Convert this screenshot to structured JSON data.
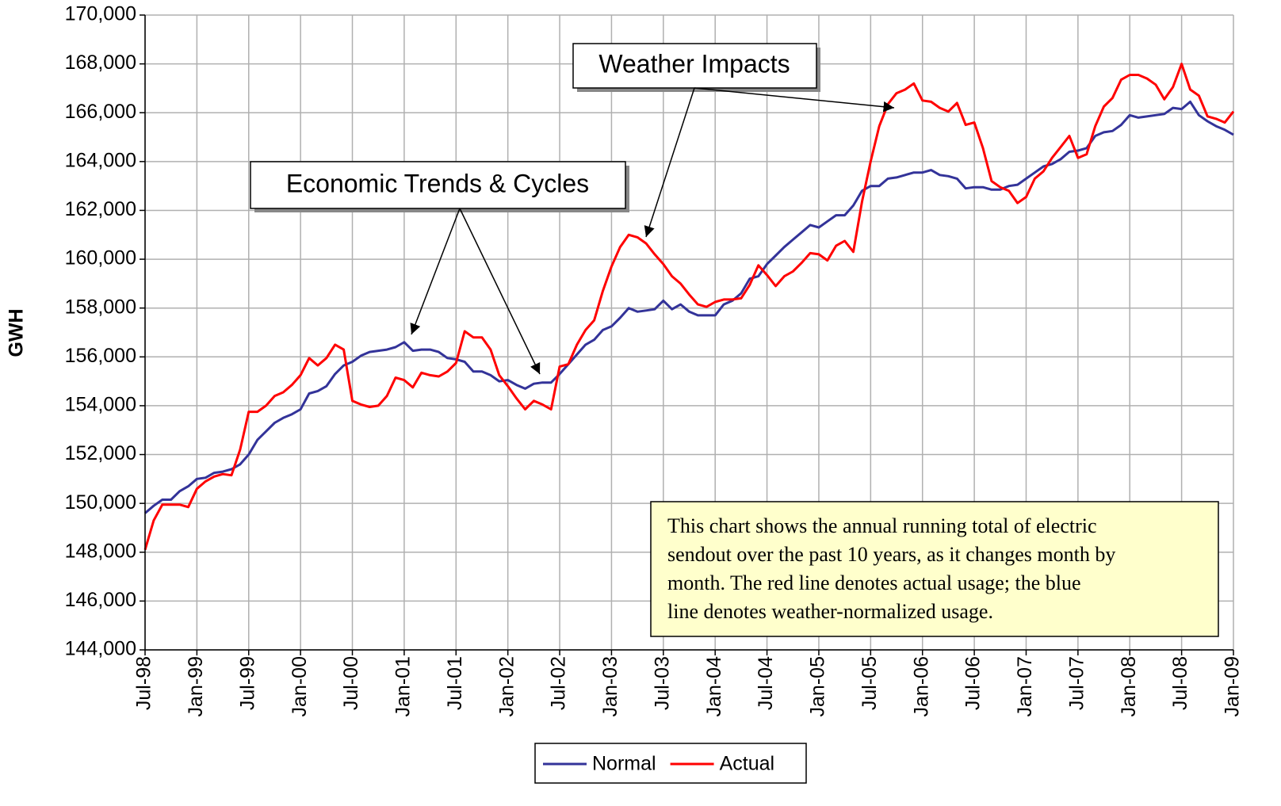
{
  "chart_data": {
    "type": "line",
    "y_label": "GWH",
    "categories": [
      "Jul-98",
      null,
      null,
      null,
      null,
      null,
      "Jan-99",
      null,
      null,
      null,
      null,
      null,
      "Jul-99",
      null,
      null,
      null,
      null,
      null,
      "Jan-00",
      null,
      null,
      null,
      null,
      null,
      "Jul-00",
      null,
      null,
      null,
      null,
      null,
      "Jan-01",
      null,
      null,
      null,
      null,
      null,
      "Jul-01",
      null,
      null,
      null,
      null,
      null,
      "Jan-02",
      null,
      null,
      null,
      null,
      null,
      "Jul-02",
      null,
      null,
      null,
      null,
      null,
      "Jan-03",
      null,
      null,
      null,
      null,
      null,
      "Jul-03",
      null,
      null,
      null,
      null,
      null,
      "Jan-04",
      null,
      null,
      null,
      null,
      null,
      "Jul-04",
      null,
      null,
      null,
      null,
      null,
      "Jan-05",
      null,
      null,
      null,
      null,
      null,
      "Jul-05",
      null,
      null,
      null,
      null,
      null,
      "Jan-06",
      null,
      null,
      null,
      null,
      null,
      "Jul-06",
      null,
      null,
      null,
      null,
      null,
      "Jan-07",
      null,
      null,
      null,
      null,
      null,
      "Jul-07",
      null,
      null,
      null,
      null,
      null,
      "Jan-08",
      null,
      null,
      null,
      null,
      null,
      "Jul-08",
      null,
      null,
      null,
      null,
      null,
      "Jan-09"
    ],
    "series": [
      {
        "name": "Normal",
        "color": "#333399",
        "values": [
          149600,
          149900,
          150150,
          150150,
          150500,
          150700,
          151000,
          151050,
          151250,
          151300,
          151400,
          151600,
          152000,
          152600,
          152950,
          153300,
          153500,
          153650,
          153850,
          154500,
          154600,
          154800,
          155300,
          155650,
          155800,
          156050,
          156200,
          156250,
          156300,
          156400,
          156600,
          156250,
          156300,
          156300,
          156200,
          155950,
          155900,
          155800,
          155400,
          155400,
          155250,
          155000,
          155050,
          154850,
          154700,
          154900,
          154950,
          154950,
          155300,
          155700,
          156100,
          156500,
          156700,
          157100,
          157250,
          157600,
          158000,
          157850,
          157900,
          157950,
          158300,
          157950,
          158150,
          157850,
          157700,
          157700,
          157700,
          158150,
          158300,
          158600,
          159200,
          159300,
          159800,
          160150,
          160500,
          160800,
          161100,
          161400,
          161300,
          161550,
          161800,
          161800,
          162200,
          162800,
          163000,
          163000,
          163300,
          163350,
          163450,
          163550,
          163550,
          163650,
          163450,
          163400,
          163300,
          162900,
          162950,
          162950,
          162850,
          162850,
          163000,
          163050,
          163300,
          163550,
          163800,
          163900,
          164100,
          164400,
          164450,
          164550,
          165050,
          165200,
          165250,
          165500,
          165900,
          165800,
          165850,
          165900,
          165950,
          166200,
          166150,
          166450,
          165900,
          165650,
          165450,
          165300,
          165100
        ]
      },
      {
        "name": "Actual",
        "color": "#ff0000",
        "values": [
          148100,
          149300,
          149950,
          149950,
          149950,
          149850,
          150600,
          150900,
          151100,
          151200,
          151150,
          152200,
          153750,
          153750,
          154000,
          154400,
          154550,
          154850,
          155250,
          155950,
          155650,
          155950,
          156500,
          156300,
          154200,
          154050,
          153950,
          154000,
          154400,
          155150,
          155050,
          154750,
          155350,
          155250,
          155200,
          155400,
          155750,
          157050,
          156800,
          156800,
          156300,
          155250,
          154800,
          154300,
          153850,
          154200,
          154050,
          153850,
          155600,
          155700,
          156500,
          157100,
          157500,
          158700,
          159700,
          160500,
          161000,
          160900,
          160650,
          160200,
          159800,
          159300,
          159000,
          158550,
          158150,
          158050,
          158250,
          158350,
          158350,
          158400,
          158950,
          159750,
          159350,
          158900,
          159300,
          159500,
          159850,
          160250,
          160200,
          159950,
          160550,
          160750,
          160300,
          162350,
          164000,
          165450,
          166350,
          166800,
          166950,
          167200,
          166500,
          166450,
          166200,
          166050,
          166400,
          165500,
          165600,
          164550,
          163200,
          162950,
          162800,
          162300,
          162550,
          163300,
          163600,
          164150,
          164600,
          165050,
          164150,
          164300,
          165450,
          166250,
          166600,
          167350,
          167550,
          167550,
          167400,
          167150,
          166550,
          167050,
          168000,
          166950,
          166700,
          165850,
          165750,
          165600,
          166050
        ]
      }
    ],
    "ylim": [
      144000,
      170000
    ],
    "yticks": [
      {
        "value": 144000,
        "label": "144,000"
      },
      {
        "value": 146000,
        "label": "146,000"
      },
      {
        "value": 148000,
        "label": "148,000"
      },
      {
        "value": 150000,
        "label": "150,000"
      },
      {
        "value": 152000,
        "label": "152,000"
      },
      {
        "value": 154000,
        "label": "154,000"
      },
      {
        "value": 156000,
        "label": "156,000"
      },
      {
        "value": 158000,
        "label": "158,000"
      },
      {
        "value": 160000,
        "label": "160,000"
      },
      {
        "value": 162000,
        "label": "162,000"
      },
      {
        "value": 164000,
        "label": "164,000"
      },
      {
        "value": 166000,
        "label": "166,000"
      },
      {
        "value": 168000,
        "label": "168,000"
      },
      {
        "value": 170000,
        "label": "170,000"
      }
    ],
    "grid": true,
    "legend": "bottom",
    "annotations": [
      "Weather Impacts",
      "Economic Trends & Cycles"
    ],
    "note": [
      "This chart shows the annual running total of electric",
      "sendout over the past 10 years, as it changes month by",
      "month. The red line denotes actual usage; the blue",
      "line denotes weather-normalized usage."
    ]
  }
}
